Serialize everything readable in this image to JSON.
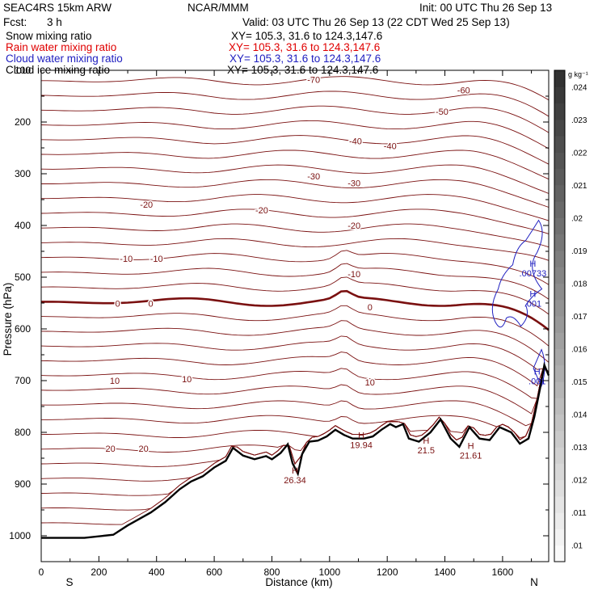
{
  "header": {
    "model": "SEAC4RS 15km ARW",
    "org": "NCAR/MMM",
    "init": "Init: 00 UTC Thu 26 Sep 13",
    "fcst_label": "Fcst:",
    "fcst_value": "3 h",
    "valid": "Valid: 03 UTC Thu 26 Sep 13 (22 CDT Wed 25 Sep 13)"
  },
  "legend": [
    {
      "label": "Snow mixing ratio",
      "xy": "XY= 105.3, 31.6 to 124.3,147.6",
      "color": "#000000"
    },
    {
      "label": "Rain water mixing ratio",
      "xy": "XY= 105.3, 31.6 to 124.3,147.6",
      "color": "#e00000"
    },
    {
      "label": "Cloud water mixing ratio",
      "xy": "XY= 105.3, 31.6 to 124.3,147.6",
      "color": "#2020c0"
    },
    {
      "label": "Cloud ice mixing ratio",
      "xy": "XY= 105.3, 31.6 to 124.3,147.6",
      "color": "#000000"
    }
  ],
  "chart_data": {
    "type": "contour",
    "xlabel": "Distance (km)",
    "ylabel": "Pressure (hPa)",
    "xlim": [
      0,
      1760
    ],
    "ylim": [
      1050,
      100
    ],
    "x_ticks": [
      "0",
      "200",
      "400",
      "600",
      "800",
      "1000",
      "1200",
      "1400",
      "1600"
    ],
    "y_ticks": [
      "100",
      "200",
      "300",
      "400",
      "500",
      "600",
      "700",
      "800",
      "900",
      "1000"
    ],
    "left_end": "S",
    "right_end": "N",
    "isotherm_color": "#7a1010",
    "freezing_color": "#7a1010",
    "contour_labels": [
      {
        "text": "-70",
        "x": 945,
        "p": 118
      },
      {
        "text": "-60",
        "x": 1465,
        "p": 138
      },
      {
        "text": "-50",
        "x": 1390,
        "p": 180
      },
      {
        "text": "-40",
        "x": 1090,
        "p": 237
      },
      {
        "text": "-40",
        "x": 1210,
        "p": 246
      },
      {
        "text": "-30",
        "x": 945,
        "p": 305
      },
      {
        "text": "-30",
        "x": 1085,
        "p": 318
      },
      {
        "text": "-20",
        "x": 365,
        "p": 359
      },
      {
        "text": "-20",
        "x": 765,
        "p": 370
      },
      {
        "text": "-20",
        "x": 1085,
        "p": 400
      },
      {
        "text": "-10",
        "x": 295,
        "p": 464
      },
      {
        "text": "-10",
        "x": 400,
        "p": 464
      },
      {
        "text": "-10",
        "x": 1085,
        "p": 494
      },
      {
        "text": "0",
        "x": 265,
        "p": 551
      },
      {
        "text": "0",
        "x": 380,
        "p": 551
      },
      {
        "text": "0",
        "x": 1140,
        "p": 558
      },
      {
        "text": "10",
        "x": 255,
        "p": 700
      },
      {
        "text": "10",
        "x": 505,
        "p": 697
      },
      {
        "text": "10",
        "x": 1140,
        "p": 703
      },
      {
        "text": "20",
        "x": 240,
        "p": 831
      },
      {
        "text": "20",
        "x": 355,
        "p": 831
      }
    ],
    "highs": [
      {
        "label": "H",
        "value": "26.34",
        "x": 880,
        "p": 880
      },
      {
        "label": "H",
        "value": "19.94",
        "x": 1110,
        "p": 812
      },
      {
        "label": "H",
        "value": "21.5",
        "x": 1335,
        "p": 822
      },
      {
        "label": "H",
        "value": "21.61",
        "x": 1490,
        "p": 832
      },
      {
        "label": "H",
        "value": ".00733",
        "x": 1705,
        "p": 480
      },
      {
        "label": "H",
        "value": ".001",
        "x": 1705,
        "p": 538
      },
      {
        "label": "H",
        "value": ".001",
        "x": 1720,
        "p": 688
      }
    ],
    "colorbar": {
      "units": "g kg⁻¹",
      "labels": [
        ".01",
        ".011",
        ".012",
        ".013",
        ".014",
        ".015",
        ".016",
        ".017",
        ".018",
        ".019",
        ".02",
        ".021",
        ".022",
        ".023",
        ".024"
      ],
      "min": 0.0095,
      "max": 0.0245
    }
  }
}
